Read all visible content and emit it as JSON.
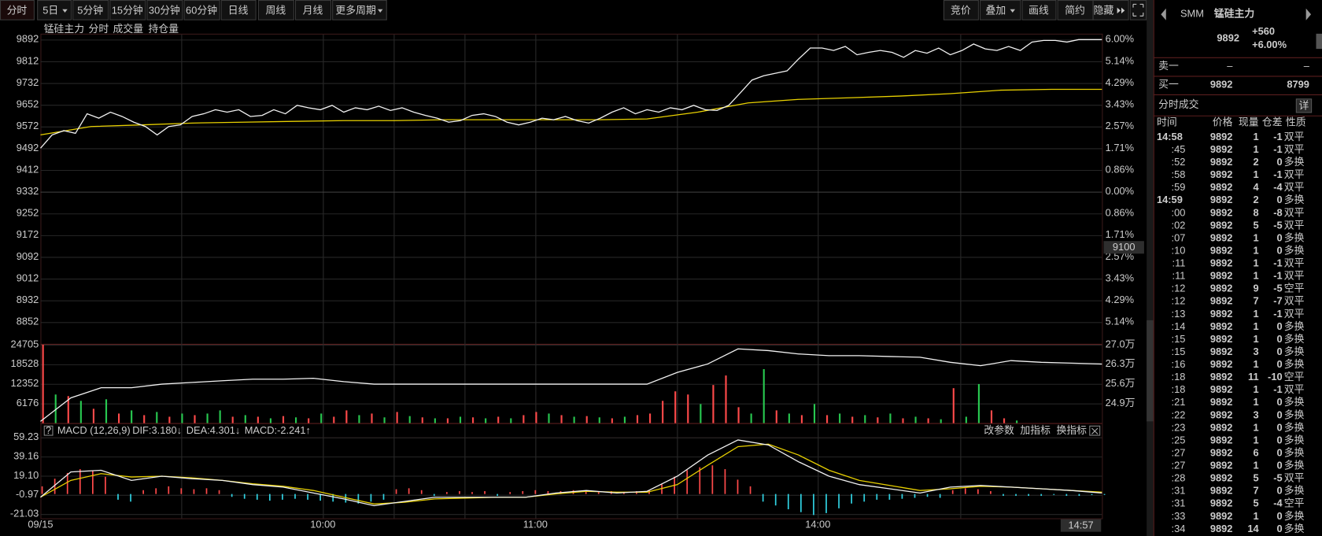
{
  "toolbar": {
    "left": [
      "分时",
      "5日",
      "5分钟",
      "15分钟",
      "30分钟",
      "60分钟",
      "日线",
      "周线",
      "月线",
      "更多周期"
    ],
    "right": [
      "竞价",
      "叠加",
      "画线",
      "简约",
      "隐藏"
    ]
  },
  "legend": [
    "锰硅主力",
    "分时",
    "成交量",
    "持仓量"
  ],
  "price_chart": {
    "ylim": [
      8772,
      9892
    ],
    "yticks": [
      9892,
      9812,
      9732,
      9652,
      9572,
      9492,
      9412,
      9332,
      9252,
      9172,
      9092,
      9012,
      8932,
      8852
    ],
    "percent_labels": [
      "6.00%",
      "5.14%",
      "4.29%",
      "3.43%",
      "2.57%",
      "1.71%",
      "0.86%",
      "0.00%",
      "0.86%",
      "1.71%",
      "2.57%",
      "3.43%",
      "4.29%",
      "5.14%"
    ],
    "marker": "9100",
    "price": [
      9492,
      9541,
      9557,
      9547,
      9619,
      9603,
      9625,
      9609,
      9588,
      9572,
      9541,
      9572,
      9578,
      9609,
      9619,
      9634,
      9625,
      9634,
      9609,
      9613,
      9634,
      9619,
      9650,
      9641,
      9634,
      9650,
      9625,
      9641,
      9634,
      9647,
      9631,
      9641,
      9625,
      9613,
      9603,
      9588,
      9594,
      9613,
      9619,
      9609,
      9588,
      9578,
      9588,
      9603,
      9597,
      9609,
      9594,
      9585,
      9603,
      9625,
      9641,
      9619,
      9634,
      9625,
      9641,
      9634,
      9650,
      9634,
      9631,
      9650,
      9696,
      9743,
      9759,
      9768,
      9777,
      9821,
      9861,
      9861,
      9852,
      9867,
      9836,
      9845,
      9852,
      9845,
      9827,
      9852,
      9842,
      9861,
      9836,
      9852,
      9876,
      9858,
      9852,
      9867,
      9852,
      9883,
      9889,
      9889,
      9883,
      9892,
      9892,
      9892
    ],
    "average": [
      9541,
      9572,
      9578,
      9585,
      9588,
      9591,
      9594,
      9594,
      9597,
      9597,
      9597,
      9597,
      9600,
      9625,
      9659,
      9672,
      9678,
      9684,
      9693,
      9706,
      9709,
      9709
    ]
  },
  "volume_chart": {
    "vlim": [
      0,
      24705
    ],
    "vticks": [
      24705,
      18528,
      12352,
      6176
    ],
    "volume": [
      24705,
      9000,
      8500,
      7000,
      4500,
      7500,
      3000,
      4000,
      2500,
      3500,
      2000,
      3000,
      2500,
      3000,
      4000,
      2000,
      2500,
      2000,
      1500,
      2200,
      1800,
      1500,
      3000,
      2000,
      4000,
      2500,
      3000,
      1800,
      3500,
      2200,
      1800,
      1500,
      1500,
      2000,
      1800,
      1500,
      2000,
      1500,
      2500,
      3500,
      3000,
      2500,
      2000,
      2200,
      1800,
      1500,
      2000,
      2500,
      3000,
      7000,
      10000,
      9000,
      6000,
      12000,
      15000,
      5000,
      3000,
      17000,
      4000,
      3000,
      2500,
      6000,
      2500,
      3000,
      2000,
      2500,
      1800,
      3000,
      1500,
      2000,
      1500,
      1200,
      11000,
      2000,
      12300,
      4000,
      1500,
      800
    ],
    "direction": [
      "u",
      "d",
      "u",
      "d",
      "u",
      "d",
      "u",
      "d",
      "u",
      "d",
      "u",
      "d",
      "u",
      "d",
      "d",
      "u",
      "d",
      "u",
      "d",
      "u",
      "d",
      "u",
      "d",
      "u",
      "u",
      "d",
      "u",
      "d",
      "u",
      "d",
      "u",
      "d",
      "u",
      "d",
      "u",
      "d",
      "u",
      "d",
      "u",
      "u",
      "d",
      "u",
      "d",
      "u",
      "d",
      "u",
      "d",
      "u",
      "u",
      "u",
      "u",
      "u",
      "d",
      "u",
      "u",
      "u",
      "d",
      "d",
      "u",
      "d",
      "u",
      "d",
      "u",
      "d",
      "u",
      "d",
      "u",
      "d",
      "u",
      "d",
      "u",
      "d",
      "u",
      "d",
      "d",
      "u",
      "u",
      "d"
    ],
    "oi_lim": [
      24.2,
      27.0
    ],
    "oi_ticks": [
      {
        "value": 27.0,
        "label": "27.0万"
      },
      {
        "value": 26.3,
        "label": "26.3万"
      },
      {
        "value": 25.6,
        "label": "25.6万"
      },
      {
        "value": 24.9,
        "label": "24.9万"
      }
    ],
    "oi": [
      24.26,
      25.1,
      25.46,
      25.46,
      25.59,
      25.65,
      25.71,
      25.77,
      25.77,
      25.8,
      25.68,
      25.59,
      25.59,
      25.59,
      25.59,
      25.59,
      25.59,
      25.59,
      25.59,
      25.59,
      25.59,
      26.01,
      26.31,
      26.85,
      26.79,
      26.67,
      26.61,
      26.61,
      26.58,
      26.55,
      26.37,
      26.25,
      26.43,
      26.37,
      26.34,
      26.31
    ]
  },
  "macd": {
    "help": "?",
    "title": "MACD (12,26,9)",
    "dif_label": "DIF:3.180↓",
    "dea_label": "DEA:4.301↓",
    "macd_label": "MACD:-2.241↑",
    "buttons": [
      "改参数",
      "加指标",
      "换指标"
    ],
    "ylim": [
      -21.03,
      59.23
    ],
    "yticks": [
      59.23,
      39.16,
      {
        "value": 19.1,
        "label": "19.10"
      },
      -0.97,
      -21.03
    ],
    "dif": [
      -3.39,
      23.07,
      24.83,
      14.25,
      18.66,
      16.01,
      14.25,
      9.84,
      7.19,
      1.02,
      -5.16,
      -12.21,
      -7.8,
      -3.39,
      -3.39,
      -3.39,
      -3.39,
      1.02,
      3.67,
      1.02,
      2.78,
      18.66,
      40.71,
      56.58,
      51.29,
      33.65,
      18.66,
      9.84,
      5.43,
      1.02,
      7.19,
      8.96,
      7.19,
      5.43,
      3.67,
      1.02
    ],
    "dea": [
      -3.39,
      14.25,
      21.3,
      17.78,
      18.66,
      16.89,
      14.25,
      10.72,
      8.07,
      3.67,
      -3.39,
      -10.45,
      -8.68,
      -5.16,
      -4.27,
      -3.39,
      -3.39,
      0.14,
      2.78,
      1.9,
      1.9,
      9.84,
      30.12,
      49.53,
      52.17,
      40.71,
      24.83,
      14.25,
      8.96,
      3.67,
      5.43,
      8.07,
      7.19,
      5.43,
      3.67,
      1.9
    ],
    "hist": [
      8,
      16,
      22,
      26,
      24,
      18,
      -6,
      -8,
      4,
      6,
      8,
      6,
      5,
      6,
      4,
      -3,
      -5,
      -6,
      -7,
      -6,
      -5,
      -6,
      -7,
      -8,
      -9,
      -10,
      -8,
      -6,
      5,
      6,
      4,
      -2,
      2,
      3,
      2,
      3,
      -2,
      2,
      3,
      4,
      3,
      3,
      4,
      3,
      2,
      3,
      2,
      3,
      4,
      10,
      18,
      25,
      28,
      30,
      26,
      15,
      8,
      -8,
      -12,
      -16,
      -19,
      -22,
      -20,
      -15,
      -10,
      -8,
      -6,
      -6,
      -5,
      -4,
      -3,
      -4,
      4,
      6,
      5,
      3,
      -2,
      -2,
      -2,
      -2,
      -1,
      -2,
      -2,
      -1,
      -1
    ]
  },
  "x_axis": {
    "labels": [
      "09/15",
      "10:00",
      "11:00",
      "14:00"
    ],
    "cursor": "14:57"
  },
  "quote": {
    "prefix": "SMM",
    "name": "锰硅主力",
    "price": 9892,
    "change": "+560",
    "pct": "+6.00%",
    "ask_label": "卖一",
    "ask_price": "–",
    "ask_vol": "–",
    "bid_label": "买一",
    "bid_price": 9892,
    "bid_vol": 8799
  },
  "trades": {
    "title": "分时成交",
    "detail": "详",
    "headers": [
      "时间",
      "价格",
      "现量",
      "仓差",
      "性质"
    ],
    "rows": [
      [
        "14:58",
        9892,
        1,
        -1,
        "双平"
      ],
      [
        ":45",
        9892,
        1,
        -1,
        "双平"
      ],
      [
        ":52",
        9892,
        2,
        0,
        "多换"
      ],
      [
        ":58",
        9892,
        1,
        -1,
        "双平"
      ],
      [
        ":59",
        9892,
        4,
        -4,
        "双平"
      ],
      [
        "14:59",
        9892,
        2,
        0,
        "多换"
      ],
      [
        ":00",
        9892,
        8,
        -8,
        "双平"
      ],
      [
        ":02",
        9892,
        5,
        -5,
        "双平"
      ],
      [
        ":07",
        9892,
        1,
        0,
        "多换"
      ],
      [
        ":10",
        9892,
        1,
        0,
        "多换"
      ],
      [
        ":11",
        9892,
        1,
        -1,
        "双平"
      ],
      [
        ":11",
        9892,
        1,
        -1,
        "双平"
      ],
      [
        ":12",
        9892,
        9,
        -5,
        "空平"
      ],
      [
        ":12",
        9892,
        7,
        -7,
        "双平"
      ],
      [
        ":13",
        9892,
        1,
        -1,
        "双平"
      ],
      [
        ":14",
        9892,
        1,
        0,
        "多换"
      ],
      [
        ":15",
        9892,
        1,
        0,
        "多换"
      ],
      [
        ":15",
        9892,
        3,
        0,
        "多换"
      ],
      [
        ":16",
        9892,
        1,
        0,
        "多换"
      ],
      [
        ":18",
        9892,
        11,
        -10,
        "空平"
      ],
      [
        ":18",
        9892,
        1,
        -1,
        "双平"
      ],
      [
        ":21",
        9892,
        1,
        0,
        "多换"
      ],
      [
        ":22",
        9892,
        3,
        0,
        "多换"
      ],
      [
        ":23",
        9892,
        1,
        0,
        "多换"
      ],
      [
        ":25",
        9892,
        1,
        0,
        "多换"
      ],
      [
        ":27",
        9892,
        6,
        0,
        "多换"
      ],
      [
        ":27",
        9892,
        1,
        0,
        "多换"
      ],
      [
        ":28",
        9892,
        5,
        -5,
        "双平"
      ],
      [
        ":31",
        9892,
        7,
        0,
        "多换"
      ],
      [
        ":31",
        9892,
        5,
        -4,
        "空平"
      ],
      [
        ":33",
        9892,
        1,
        0,
        "多换"
      ],
      [
        ":34",
        9892,
        14,
        0,
        "多换"
      ]
    ]
  }
}
